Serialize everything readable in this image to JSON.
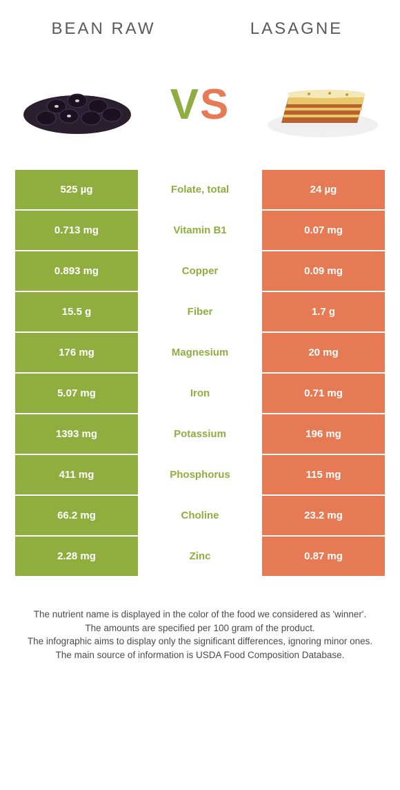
{
  "colors": {
    "left": "#8fae3f",
    "right": "#e67a54",
    "text": "#4a4a4a"
  },
  "header": {
    "left_title": "BEAN RAW",
    "right_title": "LASAGNE",
    "vs_v": "V",
    "vs_s": "S"
  },
  "rows": [
    {
      "left": "525 µg",
      "label": "Folate, total",
      "right": "24 µg",
      "winner": "left"
    },
    {
      "left": "0.713 mg",
      "label": "Vitamin B1",
      "right": "0.07 mg",
      "winner": "left"
    },
    {
      "left": "0.893 mg",
      "label": "Copper",
      "right": "0.09 mg",
      "winner": "left"
    },
    {
      "left": "15.5 g",
      "label": "Fiber",
      "right": "1.7 g",
      "winner": "left"
    },
    {
      "left": "176 mg",
      "label": "Magnesium",
      "right": "20 mg",
      "winner": "left"
    },
    {
      "left": "5.07 mg",
      "label": "Iron",
      "right": "0.71 mg",
      "winner": "left"
    },
    {
      "left": "1393 mg",
      "label": "Potassium",
      "right": "196 mg",
      "winner": "left"
    },
    {
      "left": "411 mg",
      "label": "Phosphorus",
      "right": "115 mg",
      "winner": "left"
    },
    {
      "left": "66.2 mg",
      "label": "Choline",
      "right": "23.2 mg",
      "winner": "left"
    },
    {
      "left": "2.28 mg",
      "label": "Zinc",
      "right": "0.87 mg",
      "winner": "left"
    }
  ],
  "footer": {
    "line1": "The nutrient name is displayed in the color of the food we considered as 'winner'.",
    "line2": "The amounts are specified per 100 gram of the product.",
    "line3": "The infographic aims to display only the significant differences, ignoring minor ones.",
    "line4": "The main source of information is USDA Food Composition Database."
  }
}
